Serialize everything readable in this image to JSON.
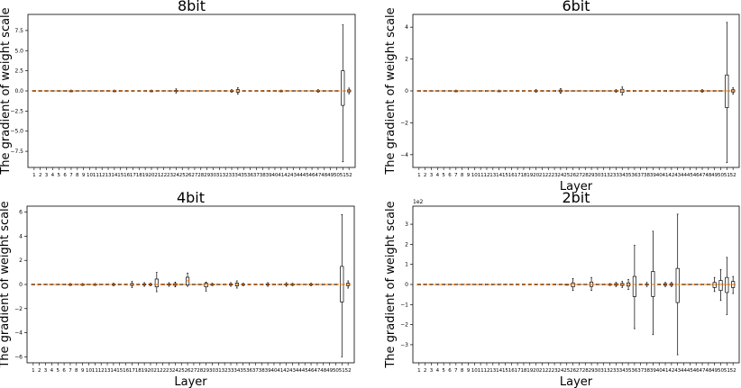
{
  "chart_data": [
    {
      "type": "box",
      "title": "8bit",
      "xlabel": "",
      "ylabel": "The gradient of weight scale",
      "categories": [
        "1",
        "2",
        "3",
        "4",
        "5",
        "6",
        "7",
        "8",
        "9",
        "10",
        "11",
        "12",
        "13",
        "14",
        "15",
        "16",
        "17",
        "18",
        "19",
        "20",
        "21",
        "22",
        "23",
        "24",
        "25",
        "26",
        "27",
        "28",
        "29",
        "30",
        "31",
        "32",
        "33",
        "34",
        "35",
        "36",
        "37",
        "38",
        "39",
        "40",
        "41",
        "42",
        "43",
        "44",
        "45",
        "46",
        "47",
        "48",
        "49",
        "50",
        "51",
        "52"
      ],
      "yticks": [
        -7.5,
        -5.0,
        -2.5,
        0.0,
        2.5,
        5.0,
        7.5
      ],
      "ytick_labels": [
        "−7.5",
        "−5.0",
        "−2.5",
        "0.0",
        "2.5",
        "5.0",
        "7.5"
      ],
      "ylim": [
        -9.5,
        9.5
      ],
      "multiplier": "",
      "boxes": [
        {
          "layer": 7,
          "low": -0.1,
          "q1": -0.04,
          "median": 0,
          "q3": 0.04,
          "high": 0.1
        },
        {
          "layer": 14,
          "low": -0.1,
          "q1": -0.04,
          "median": 0,
          "q3": 0.04,
          "high": 0.1
        },
        {
          "layer": 20,
          "low": -0.1,
          "q1": -0.04,
          "median": 0,
          "q3": 0.04,
          "high": 0.1
        },
        {
          "layer": 24,
          "low": -0.25,
          "q1": -0.08,
          "median": 0,
          "q3": 0.08,
          "high": 0.25
        },
        {
          "layer": 33,
          "low": -0.15,
          "q1": -0.05,
          "median": 0,
          "q3": 0.05,
          "high": 0.15
        },
        {
          "layer": 34,
          "low": -0.4,
          "q1": -0.15,
          "median": 0,
          "q3": 0.15,
          "high": 0.4
        },
        {
          "layer": 41,
          "low": -0.1,
          "q1": -0.04,
          "median": 0,
          "q3": 0.04,
          "high": 0.1
        },
        {
          "layer": 47,
          "low": -0.15,
          "q1": -0.05,
          "median": 0,
          "q3": 0.05,
          "high": 0.15
        },
        {
          "layer": 51,
          "low": -8.8,
          "q1": -1.8,
          "median": 0,
          "q3": 2.5,
          "high": 8.2
        },
        {
          "layer": 52,
          "low": -0.35,
          "q1": -0.12,
          "median": 0,
          "q3": 0.12,
          "high": 0.35
        }
      ]
    },
    {
      "type": "box",
      "title": "6bit",
      "xlabel": "Layer",
      "ylabel": "The gradient of weight scale",
      "categories": [
        "1",
        "2",
        "3",
        "4",
        "5",
        "6",
        "7",
        "8",
        "9",
        "10",
        "11",
        "12",
        "13",
        "14",
        "15",
        "16",
        "17",
        "18",
        "19",
        "20",
        "21",
        "22",
        "23",
        "24",
        "25",
        "26",
        "27",
        "28",
        "29",
        "30",
        "31",
        "32",
        "33",
        "34",
        "35",
        "36",
        "37",
        "38",
        "39",
        "40",
        "41",
        "42",
        "43",
        "44",
        "45",
        "46",
        "47",
        "48",
        "49",
        "50",
        "51",
        "52"
      ],
      "yticks": [
        -4,
        -2,
        0,
        2,
        4
      ],
      "ytick_labels": [
        "−4",
        "−2",
        "0",
        "2",
        "4"
      ],
      "ylim": [
        -4.8,
        4.8
      ],
      "multiplier": "",
      "boxes": [
        {
          "layer": 7,
          "low": -0.05,
          "q1": -0.02,
          "median": 0,
          "q3": 0.02,
          "high": 0.05
        },
        {
          "layer": 14,
          "low": -0.05,
          "q1": -0.02,
          "median": 0,
          "q3": 0.02,
          "high": 0.05
        },
        {
          "layer": 20,
          "low": -0.08,
          "q1": -0.03,
          "median": 0,
          "q3": 0.03,
          "high": 0.08
        },
        {
          "layer": 24,
          "low": -0.15,
          "q1": -0.05,
          "median": 0,
          "q3": 0.05,
          "high": 0.15
        },
        {
          "layer": 33,
          "low": -0.08,
          "q1": -0.03,
          "median": 0,
          "q3": 0.03,
          "high": 0.08
        },
        {
          "layer": 34,
          "low": -0.25,
          "q1": -0.1,
          "median": 0,
          "q3": 0.1,
          "high": 0.25
        },
        {
          "layer": 47,
          "low": -0.08,
          "q1": -0.03,
          "median": 0,
          "q3": 0.03,
          "high": 0.08
        },
        {
          "layer": 51,
          "low": -4.5,
          "q1": -1.05,
          "median": 0,
          "q3": 1.0,
          "high": 4.3
        },
        {
          "layer": 52,
          "low": -0.2,
          "q1": -0.07,
          "median": 0,
          "q3": 0.07,
          "high": 0.2
        }
      ]
    },
    {
      "type": "box",
      "title": "4bit",
      "xlabel": "Layer",
      "ylabel": "The gradient of weight scale",
      "categories": [
        "1",
        "2",
        "3",
        "4",
        "5",
        "6",
        "7",
        "8",
        "9",
        "10",
        "11",
        "12",
        "13",
        "14",
        "15",
        "16",
        "17",
        "18",
        "19",
        "20",
        "21",
        "22",
        "23",
        "24",
        "25",
        "26",
        "27",
        "28",
        "29",
        "30",
        "31",
        "32",
        "33",
        "34",
        "35",
        "36",
        "37",
        "38",
        "39",
        "40",
        "41",
        "42",
        "43",
        "44",
        "45",
        "46",
        "47",
        "48",
        "49",
        "50",
        "51",
        "52"
      ],
      "yticks": [
        -6,
        -4,
        -2,
        0,
        2,
        4,
        6
      ],
      "ytick_labels": [
        "−6",
        "−4",
        "−2",
        "0",
        "2",
        "4",
        "6"
      ],
      "ylim": [
        -6.5,
        6.5
      ],
      "multiplier": "",
      "boxes": [
        {
          "layer": 7,
          "low": -0.08,
          "q1": -0.03,
          "median": 0,
          "q3": 0.03,
          "high": 0.08
        },
        {
          "layer": 9,
          "low": -0.08,
          "q1": -0.03,
          "median": 0,
          "q3": 0.03,
          "high": 0.08
        },
        {
          "layer": 11,
          "low": -0.08,
          "q1": -0.03,
          "median": 0,
          "q3": 0.03,
          "high": 0.08
        },
        {
          "layer": 14,
          "low": -0.1,
          "q1": -0.04,
          "median": 0,
          "q3": 0.04,
          "high": 0.1
        },
        {
          "layer": 17,
          "low": -0.25,
          "q1": -0.08,
          "median": 0,
          "q3": 0.08,
          "high": 0.25
        },
        {
          "layer": 19,
          "low": -0.15,
          "q1": -0.05,
          "median": 0,
          "q3": 0.05,
          "high": 0.15
        },
        {
          "layer": 20,
          "low": -0.1,
          "q1": -0.04,
          "median": 0,
          "q3": 0.04,
          "high": 0.1
        },
        {
          "layer": 21,
          "low": -0.6,
          "q1": -0.2,
          "median": 0,
          "q3": 0.45,
          "high": 1.0
        },
        {
          "layer": 23,
          "low": -0.15,
          "q1": -0.05,
          "median": 0,
          "q3": 0.05,
          "high": 0.15
        },
        {
          "layer": 24,
          "low": -0.2,
          "q1": -0.07,
          "median": 0,
          "q3": 0.07,
          "high": 0.2
        },
        {
          "layer": 26,
          "low": -0.15,
          "q1": -0.05,
          "median": 0.3,
          "q3": 0.6,
          "high": 0.95
        },
        {
          "layer": 29,
          "low": -0.55,
          "q1": -0.2,
          "median": 0,
          "q3": 0.1,
          "high": 0.2
        },
        {
          "layer": 30,
          "low": -0.1,
          "q1": -0.04,
          "median": 0,
          "q3": 0.04,
          "high": 0.1
        },
        {
          "layer": 33,
          "low": -0.15,
          "q1": -0.05,
          "median": 0,
          "q3": 0.05,
          "high": 0.15
        },
        {
          "layer": 34,
          "low": -0.3,
          "q1": -0.12,
          "median": 0,
          "q3": 0.12,
          "high": 0.3
        },
        {
          "layer": 35,
          "low": -0.1,
          "q1": -0.04,
          "median": 0,
          "q3": 0.04,
          "high": 0.1
        },
        {
          "layer": 39,
          "low": -0.15,
          "q1": -0.05,
          "median": 0,
          "q3": 0.05,
          "high": 0.15
        },
        {
          "layer": 42,
          "low": -0.15,
          "q1": -0.05,
          "median": 0,
          "q3": 0.05,
          "high": 0.15
        },
        {
          "layer": 43,
          "low": -0.1,
          "q1": -0.04,
          "median": 0,
          "q3": 0.04,
          "high": 0.1
        },
        {
          "layer": 46,
          "low": -0.1,
          "q1": -0.04,
          "median": 0,
          "q3": 0.04,
          "high": 0.1
        },
        {
          "layer": 51,
          "low": -6.0,
          "q1": -1.45,
          "median": 0,
          "q3": 1.5,
          "high": 5.8
        },
        {
          "layer": 52,
          "low": -0.3,
          "q1": -0.1,
          "median": 0,
          "q3": 0.1,
          "high": 0.3
        }
      ]
    },
    {
      "type": "box",
      "title": "2bit",
      "xlabel": "Layer",
      "ylabel": "The gradient of weight scale",
      "categories": [
        "1",
        "2",
        "3",
        "4",
        "5",
        "6",
        "7",
        "8",
        "9",
        "10",
        "11",
        "12",
        "13",
        "14",
        "15",
        "16",
        "17",
        "18",
        "19",
        "20",
        "21",
        "22",
        "23",
        "24",
        "25",
        "26",
        "27",
        "28",
        "29",
        "30",
        "31",
        "32",
        "33",
        "34",
        "35",
        "36",
        "37",
        "38",
        "39",
        "40",
        "41",
        "42",
        "43",
        "44",
        "45",
        "46",
        "47",
        "48",
        "49",
        "50",
        "51",
        "52"
      ],
      "yticks": [
        -3,
        -2,
        -1,
        0,
        1,
        2,
        3
      ],
      "ytick_labels": [
        "−3",
        "−2",
        "−1",
        "0",
        "1",
        "2",
        "3"
      ],
      "ylim": [
        -3.9,
        3.9
      ],
      "multiplier": "1e2",
      "boxes": [
        {
          "layer": 25,
          "low": -0.02,
          "q1": -0.01,
          "median": 0,
          "q3": 0.01,
          "high": 0.02
        },
        {
          "layer": 26,
          "low": -0.3,
          "q1": -0.12,
          "median": 0,
          "q3": 0.08,
          "high": 0.3
        },
        {
          "layer": 29,
          "low": -0.3,
          "q1": -0.1,
          "median": 0,
          "q3": 0.12,
          "high": 0.35
        },
        {
          "layer": 32,
          "low": -0.05,
          "q1": -0.02,
          "median": 0,
          "q3": 0.02,
          "high": 0.05
        },
        {
          "layer": 33,
          "low": -0.1,
          "q1": -0.04,
          "median": 0,
          "q3": 0.04,
          "high": 0.1
        },
        {
          "layer": 34,
          "low": -0.15,
          "q1": -0.05,
          "median": 0,
          "q3": 0.05,
          "high": 0.15
        },
        {
          "layer": 35,
          "low": -0.25,
          "q1": -0.08,
          "median": 0,
          "q3": 0.08,
          "high": 0.25
        },
        {
          "layer": 36,
          "low": -2.2,
          "q1": -0.6,
          "median": 0,
          "q3": 0.4,
          "high": 1.95
        },
        {
          "layer": 38,
          "low": -0.1,
          "q1": -0.03,
          "median": 0,
          "q3": 0.03,
          "high": 0.1
        },
        {
          "layer": 39,
          "low": -2.5,
          "q1": -0.6,
          "median": 0,
          "q3": 0.65,
          "high": 2.65
        },
        {
          "layer": 41,
          "low": -0.1,
          "q1": -0.04,
          "median": 0,
          "q3": 0.04,
          "high": 0.1
        },
        {
          "layer": 42,
          "low": -0.1,
          "q1": -0.04,
          "median": 0,
          "q3": 0.04,
          "high": 0.1
        },
        {
          "layer": 43,
          "low": -3.5,
          "q1": -0.9,
          "median": 0,
          "q3": 0.8,
          "high": 3.5
        },
        {
          "layer": 49,
          "low": -0.35,
          "q1": -0.15,
          "median": 0,
          "q3": 0.1,
          "high": 0.35
        },
        {
          "layer": 50,
          "low": -0.8,
          "q1": -0.3,
          "median": 0,
          "q3": 0.2,
          "high": 0.75
        },
        {
          "layer": 51,
          "low": -1.5,
          "q1": -0.4,
          "median": 0,
          "q3": 0.35,
          "high": 1.35
        },
        {
          "layer": 52,
          "low": -0.45,
          "q1": -0.15,
          "median": 0,
          "q3": 0.15,
          "high": 0.4
        }
      ]
    }
  ]
}
